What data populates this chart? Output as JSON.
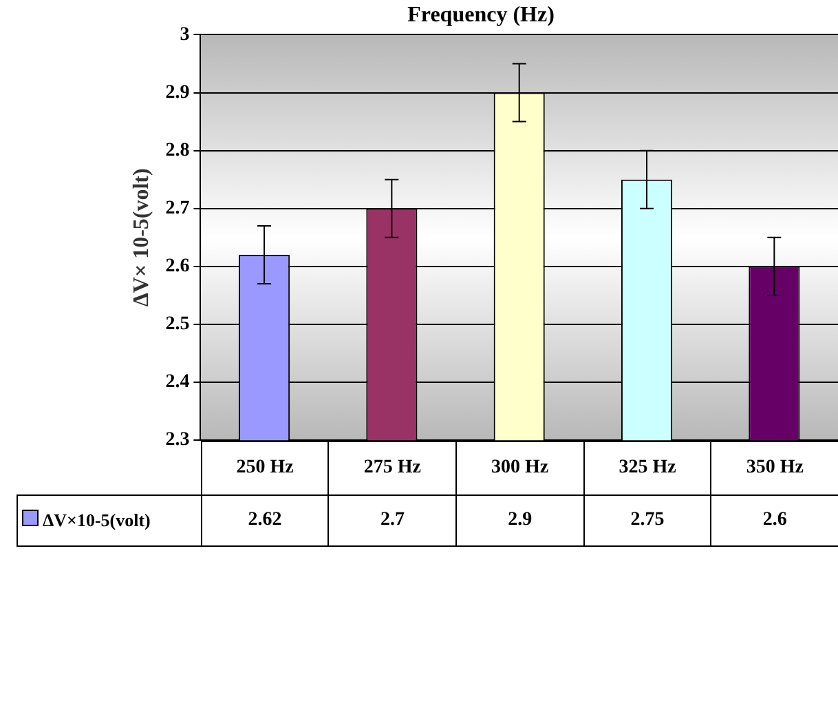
{
  "chart_data": {
    "type": "bar",
    "title": "Frequency (Hz)",
    "ylabel": "ΔV× 10-5(volt)",
    "categories": [
      "250 Hz",
      "275 Hz",
      "300 Hz",
      "325 Hz",
      "350 Hz"
    ],
    "series": [
      {
        "name": "ΔV×10-5(volt)",
        "color": "#9999ff",
        "colors": [
          "#9999ff",
          "#993366",
          "#ffffcc",
          "#ccffff",
          "#660066"
        ],
        "values": [
          2.62,
          2.7,
          2.9,
          2.75,
          2.6
        ],
        "errors": [
          0.05,
          0.05,
          0.05,
          0.05,
          0.05
        ]
      }
    ],
    "ylim": [
      2.3,
      3
    ],
    "yticks": [
      2.3,
      2.4,
      2.5,
      2.6,
      2.7,
      2.8,
      2.9,
      3
    ],
    "grid": "y",
    "legend": "bottom",
    "data_labels": true
  }
}
